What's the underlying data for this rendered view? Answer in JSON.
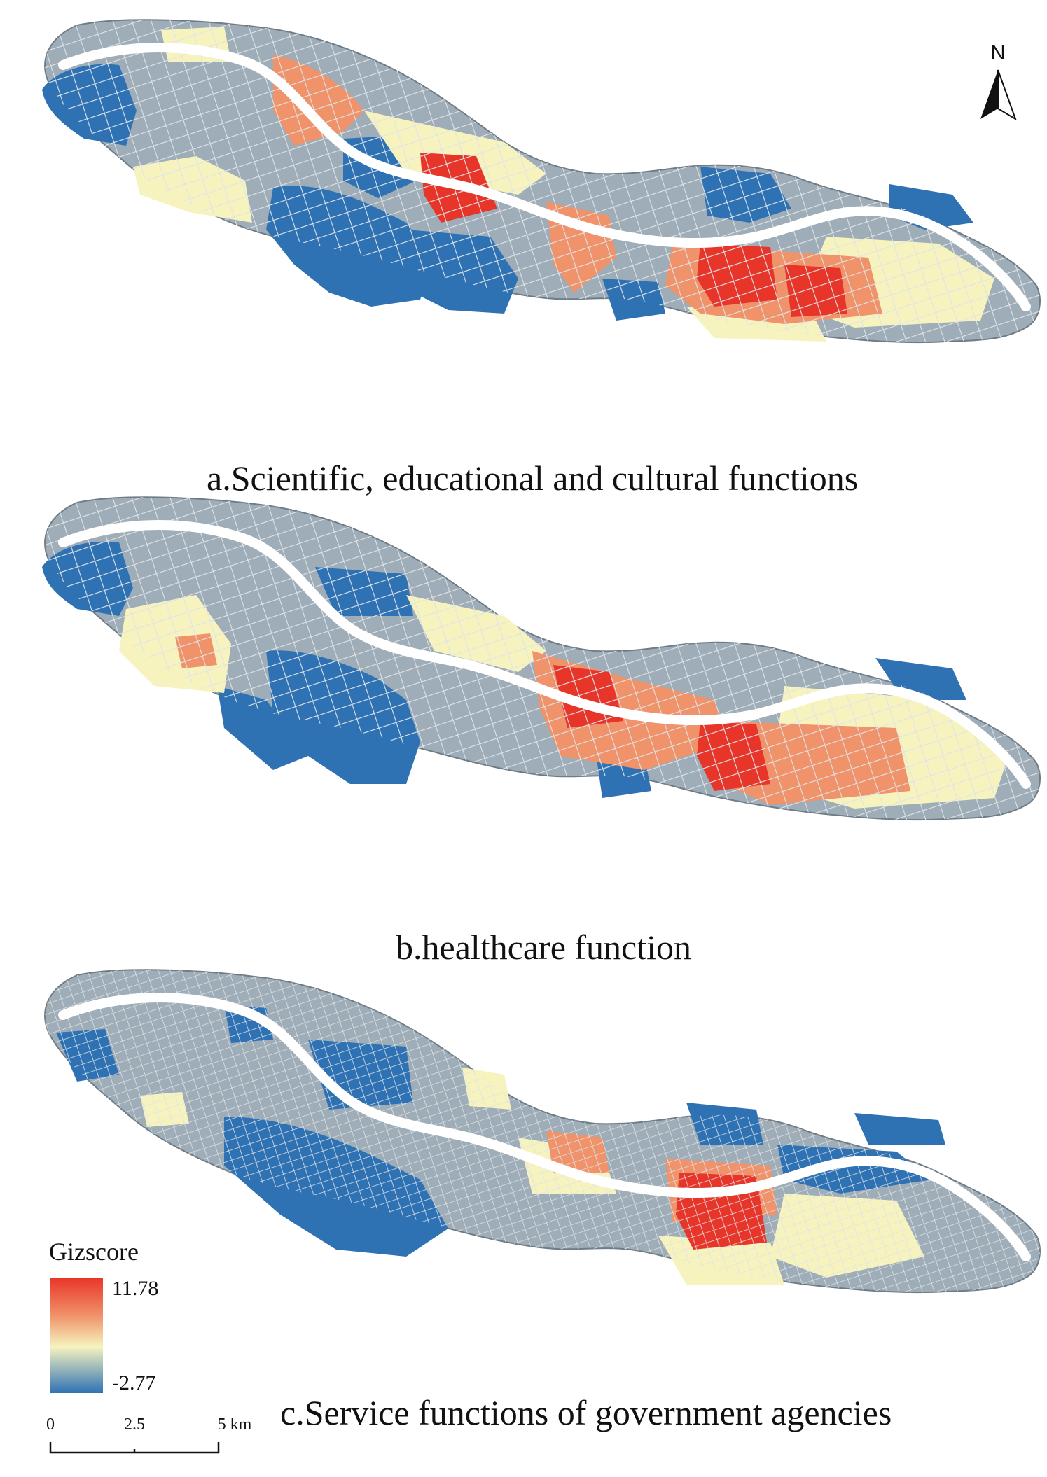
{
  "colors": {
    "background": "#ffffff",
    "base_gray": "#9eadb7",
    "road": "#dfe4e8",
    "river": "#ffffff",
    "cold_blue": "#2f72b4",
    "neutral_yellow": "#f6f3bf",
    "warm_orange": "#f0926a",
    "hot_red": "#e8352a",
    "outline": "#6f7c86"
  },
  "north_arrow": {
    "label": "N",
    "icon": "north-arrow-icon"
  },
  "panels": [
    {
      "id": "a",
      "caption": "a.Scientific, educational and cultural functions"
    },
    {
      "id": "b",
      "caption": "b.healthcare function"
    },
    {
      "id": "c",
      "caption": "c.Service functions of government agencies"
    }
  ],
  "legend": {
    "title": "Gizscore",
    "max_label": "11.78",
    "min_label": "-2.77",
    "max_value": 11.78,
    "min_value": -2.77,
    "ramp": [
      "#e8352a",
      "#f0926a",
      "#f6f3bf",
      "#2f72b4"
    ]
  },
  "scale_bar": {
    "ticks": [
      "0",
      "2.5",
      "5 km"
    ]
  }
}
